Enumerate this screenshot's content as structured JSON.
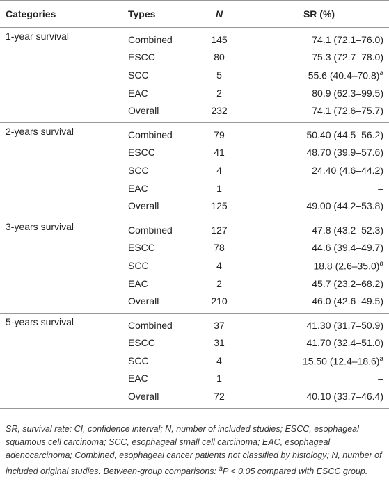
{
  "table": {
    "header": [
      "Categories",
      "Types",
      "N",
      "SR (%)"
    ],
    "groups": [
      {
        "category": "1-year survival",
        "rows": [
          {
            "type": "Combined",
            "n": 145,
            "sr": "74.1 (72.1–76.0)"
          },
          {
            "type": "ESCC",
            "n": 80,
            "sr": "75.3 (72.7–78.0)"
          },
          {
            "type": "SCC",
            "n": 5,
            "sr": "55.6 (40.4–70.8)",
            "note": "a"
          },
          {
            "type": "EAC",
            "n": 2,
            "sr": "80.9 (62.3–99.5)"
          },
          {
            "type": "Overall",
            "n": 232,
            "sr": "74.1 (72.6–75.7)"
          }
        ]
      },
      {
        "category": "2-years survival",
        "rows": [
          {
            "type": "Combined",
            "n": 79,
            "sr": "50.40 (44.5–56.2)"
          },
          {
            "type": "ESCC",
            "n": 41,
            "sr": "48.70 (39.9–57.6)"
          },
          {
            "type": "SCC",
            "n": 4,
            "sr": "24.40 (4.6–44.2)"
          },
          {
            "type": "EAC",
            "n": 1,
            "sr": "–"
          },
          {
            "type": "Overall",
            "n": 125,
            "sr": "49.00 (44.2–53.8)"
          }
        ]
      },
      {
        "category": "3-years survival",
        "rows": [
          {
            "type": "Combined",
            "n": 127,
            "sr": "47.8 (43.2–52.3)"
          },
          {
            "type": "ESCC",
            "n": 78,
            "sr": "44.6 (39.4–49.7)"
          },
          {
            "type": "SCC",
            "n": 4,
            "sr": "18.8 (2.6–35.0)",
            "note": "a"
          },
          {
            "type": "EAC",
            "n": 2,
            "sr": "45.7 (23.2–68.2)"
          },
          {
            "type": "Overall",
            "n": 210,
            "sr": "46.0 (42.6–49.5)"
          }
        ]
      },
      {
        "category": "5-years survival",
        "rows": [
          {
            "type": "Combined",
            "n": 37,
            "sr": "41.30 (31.7–50.9)"
          },
          {
            "type": "ESCC",
            "n": 31,
            "sr": "41.70 (32.4–51.0)"
          },
          {
            "type": "SCC",
            "n": 4,
            "sr": "15.50 (12.4–18.6)",
            "note": "a"
          },
          {
            "type": "EAC",
            "n": 1,
            "sr": "–"
          },
          {
            "type": "Overall",
            "n": 72,
            "sr": "40.10 (33.7–46.4)"
          }
        ]
      }
    ]
  },
  "footnote": {
    "text": "SR, survival rate; CI, confidence interval; N, number of included studies; ESCC, esophageal squamous cell carcinoma; SCC, esophageal small cell carcinoma; EAC, esophageal adenocarcinoma; Combined, esophageal cancer patients not classified by histology; N, number of included original studies. Between-group comparisons: ",
    "mark": "a",
    "tail": "P < 0.05 compared with ESCC group."
  }
}
